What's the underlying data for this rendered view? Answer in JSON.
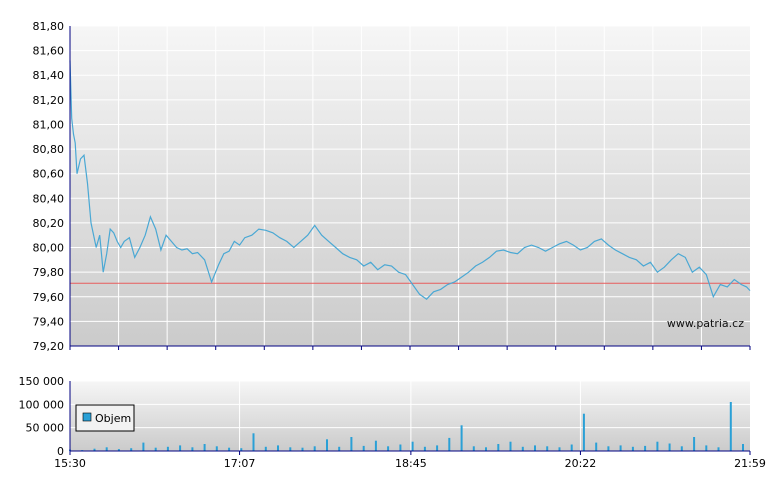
{
  "watermark": "www.patria.cz",
  "colors": {
    "line": "#4aa8d4",
    "reference": "#e85c5c",
    "volume_bar": "#2aa0d6",
    "plot_top": "#f6f6f6",
    "plot_bottom": "#cbcbcb",
    "axis": "#000080",
    "grid": "#ffffff"
  },
  "chart_data": [
    {
      "type": "line",
      "title": "",
      "xlabel": "",
      "ylabel": "",
      "ylim": [
        79.2,
        81.8
      ],
      "y_ticks": [
        "81,80",
        "81,60",
        "81,40",
        "81,20",
        "81,00",
        "80,80",
        "80,60",
        "80,40",
        "80,20",
        "80,00",
        "79,80",
        "79,60",
        "79,40",
        "79,20"
      ],
      "y_tick_values": [
        81.8,
        81.6,
        81.4,
        81.2,
        81.0,
        80.8,
        80.6,
        80.4,
        80.2,
        80.0,
        79.8,
        79.6,
        79.4,
        79.2
      ],
      "xlim": [
        "15:30",
        "21:59"
      ],
      "grid": true,
      "reference_line": 79.71,
      "series": [
        {
          "x": [
            "15:30",
            "15:31",
            "15:32",
            "15:33",
            "15:34",
            "15:36",
            "15:38",
            "15:40",
            "15:42",
            "15:45",
            "15:47",
            "15:49",
            "15:51",
            "15:53",
            "15:55",
            "15:57",
            "15:59",
            "16:01",
            "16:04",
            "16:07",
            "16:10",
            "16:13",
            "16:16",
            "16:19",
            "16:22",
            "16:25",
            "16:28",
            "16:31",
            "16:34",
            "16:37",
            "16:40",
            "16:43",
            "16:47",
            "16:51",
            "16:55",
            "16:58",
            "17:01",
            "17:04",
            "17:07",
            "17:10",
            "17:14",
            "17:18",
            "17:22",
            "17:26",
            "17:30",
            "17:34",
            "17:38",
            "17:42",
            "17:46",
            "17:50",
            "17:54",
            "17:58",
            "18:02",
            "18:06",
            "18:10",
            "18:14",
            "18:18",
            "18:22",
            "18:26",
            "18:30",
            "18:34",
            "18:38",
            "18:42",
            "18:46",
            "18:50",
            "18:54",
            "18:58",
            "19:02",
            "19:06",
            "19:10",
            "19:14",
            "19:18",
            "19:22",
            "19:26",
            "19:30",
            "19:34",
            "19:38",
            "19:42",
            "19:46",
            "19:50",
            "19:54",
            "19:58",
            "20:02",
            "20:06",
            "20:10",
            "20:14",
            "20:18",
            "20:22",
            "20:26",
            "20:30",
            "20:34",
            "20:38",
            "20:42",
            "20:46",
            "20:50",
            "20:54",
            "20:58",
            "21:02",
            "21:06",
            "21:10",
            "21:14",
            "21:18",
            "21:22",
            "21:26",
            "21:30",
            "21:34",
            "21:38",
            "21:42",
            "21:46",
            "21:50",
            "21:54",
            "21:57",
            "21:59"
          ],
          "y": [
            81.52,
            81.05,
            80.92,
            80.85,
            80.6,
            80.72,
            80.75,
            80.52,
            80.2,
            80.0,
            80.1,
            79.8,
            79.95,
            80.15,
            80.12,
            80.05,
            80.0,
            80.05,
            80.08,
            79.92,
            80.0,
            80.1,
            80.25,
            80.15,
            79.98,
            80.1,
            80.05,
            80.0,
            79.98,
            79.99,
            79.95,
            79.96,
            79.9,
            79.72,
            79.86,
            79.95,
            79.97,
            80.05,
            80.02,
            80.08,
            80.1,
            80.15,
            80.14,
            80.12,
            80.08,
            80.05,
            80.0,
            80.05,
            80.1,
            80.18,
            80.1,
            80.05,
            80.0,
            79.95,
            79.92,
            79.9,
            79.85,
            79.88,
            79.82,
            79.86,
            79.85,
            79.8,
            79.78,
            79.7,
            79.62,
            79.58,
            79.64,
            79.66,
            79.7,
            79.72,
            79.76,
            79.8,
            79.85,
            79.88,
            79.92,
            79.97,
            79.98,
            79.96,
            79.95,
            80.0,
            80.02,
            80.0,
            79.97,
            80.0,
            80.03,
            80.05,
            80.02,
            79.98,
            80.0,
            80.05,
            80.07,
            80.02,
            79.98,
            79.95,
            79.92,
            79.9,
            79.85,
            79.88,
            79.8,
            79.84,
            79.9,
            79.95,
            79.92,
            79.8,
            79.84,
            79.78,
            79.6,
            79.7,
            79.68,
            79.74,
            79.7,
            79.68,
            79.65
          ],
          "color": "#4aa8d4"
        }
      ]
    },
    {
      "type": "bar",
      "title": "",
      "xlabel": "",
      "ylabel": "",
      "ylim": [
        0,
        150000
      ],
      "y_ticks": [
        "150 000",
        "100 000",
        "50 000",
        "0"
      ],
      "y_tick_values": [
        150000,
        100000,
        50000,
        0
      ],
      "x_ticks": [
        "15:30",
        "17:07",
        "18:45",
        "20:22",
        "21:59"
      ],
      "legend": "Objem",
      "legend_position": "left",
      "series": [
        {
          "name": "Objem",
          "x": [
            "15:30",
            "15:37",
            "15:44",
            "15:51",
            "15:58",
            "16:05",
            "16:12",
            "16:19",
            "16:26",
            "16:33",
            "16:40",
            "16:47",
            "16:54",
            "17:01",
            "17:08",
            "17:15",
            "17:22",
            "17:29",
            "17:36",
            "17:43",
            "17:50",
            "17:57",
            "18:04",
            "18:11",
            "18:18",
            "18:25",
            "18:32",
            "18:39",
            "18:46",
            "18:53",
            "19:00",
            "19:07",
            "19:14",
            "19:21",
            "19:28",
            "19:35",
            "19:42",
            "19:49",
            "19:56",
            "20:03",
            "20:10",
            "20:17",
            "20:24",
            "20:31",
            "20:38",
            "20:45",
            "20:52",
            "20:59",
            "21:06",
            "21:13",
            "21:20",
            "21:27",
            "21:34",
            "21:41",
            "21:48",
            "21:55"
          ],
          "values": [
            3000,
            2000,
            5000,
            8000,
            4000,
            6000,
            18000,
            7000,
            9000,
            12000,
            8000,
            15000,
            10000,
            7000,
            6000,
            38000,
            9000,
            12000,
            8000,
            7000,
            10000,
            25000,
            9000,
            30000,
            11000,
            22000,
            10000,
            14000,
            20000,
            9000,
            12000,
            28000,
            55000,
            10000,
            8000,
            15000,
            20000,
            9000,
            12000,
            10000,
            8000,
            14000,
            80000,
            18000,
            10000,
            12000,
            9000,
            11000,
            20000,
            16000,
            10000,
            30000,
            12000,
            8000,
            105000,
            15000
          ]
        }
      ]
    }
  ]
}
